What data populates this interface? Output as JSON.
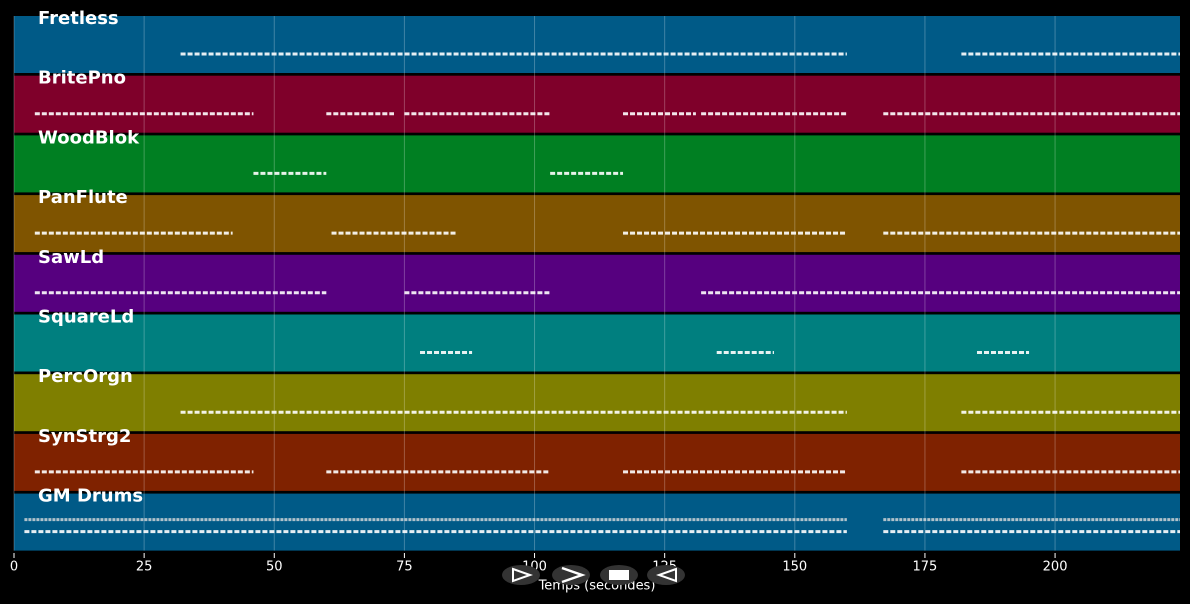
{
  "chart_data": {
    "type": "timeline",
    "xlabel": "Temps (secondes)",
    "xlim": [
      0,
      224
    ],
    "xticks": [
      0,
      25,
      50,
      75,
      100,
      125,
      150,
      175,
      200
    ],
    "grid": true,
    "tracks": [
      {
        "name": "Fretless",
        "color": "#005a87",
        "segments": [
          [
            32,
            160
          ],
          [
            182,
            224
          ]
        ]
      },
      {
        "name": "BritePno",
        "color": "#7f002a",
        "segments": [
          [
            4,
            46
          ],
          [
            60,
            73
          ],
          [
            75,
            103
          ],
          [
            117,
            131
          ],
          [
            132,
            160
          ],
          [
            167,
            224
          ]
        ]
      },
      {
        "name": "WoodBlok",
        "color": "#007f22",
        "segments": [
          [
            46,
            60
          ],
          [
            103,
            117
          ]
        ]
      },
      {
        "name": "PanFlute",
        "color": "#7f5400",
        "segments": [
          [
            4,
            42
          ],
          [
            61,
            85
          ],
          [
            117,
            160
          ],
          [
            167,
            224
          ]
        ]
      },
      {
        "name": "SawLd",
        "color": "#56007f",
        "segments": [
          [
            4,
            60
          ],
          [
            75,
            103
          ],
          [
            132,
            224
          ]
        ]
      },
      {
        "name": "SquareLd",
        "color": "#007f7f",
        "segments": [
          [
            78,
            88
          ],
          [
            135,
            146
          ],
          [
            185,
            195
          ]
        ]
      },
      {
        "name": "PercOrgn",
        "color": "#7f7f00",
        "segments": [
          [
            32,
            160
          ],
          [
            182,
            224
          ]
        ]
      },
      {
        "name": "SynStrg2",
        "color": "#7f2200",
        "segments": [
          [
            4,
            46
          ],
          [
            60,
            103
          ],
          [
            117,
            160
          ],
          [
            182,
            224
          ]
        ]
      },
      {
        "name": "GM Drums",
        "color": "#005a87",
        "segments": [
          [
            2,
            160
          ],
          [
            167,
            224
          ]
        ]
      }
    ]
  }
}
